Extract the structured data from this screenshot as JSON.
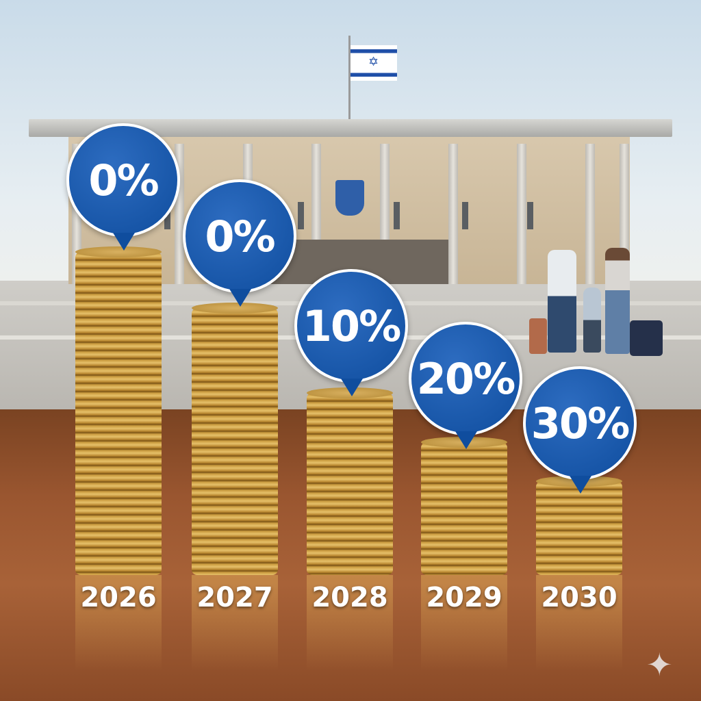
{
  "scene": {
    "flag_icon": "israel-flag",
    "emblem_icon": "menorah-emblem",
    "watermark_icon": "sparkle-icon"
  },
  "colors": {
    "bubble": "#0f4d9e",
    "coins": "#c99a3e",
    "table": "#9a5630"
  },
  "stacks": [
    {
      "year": "2026",
      "percent": "0%"
    },
    {
      "year": "2027",
      "percent": "0%"
    },
    {
      "year": "2028",
      "percent": "10%"
    },
    {
      "year": "2029",
      "percent": "20%"
    },
    {
      "year": "2030",
      "percent": "30%"
    }
  ]
}
